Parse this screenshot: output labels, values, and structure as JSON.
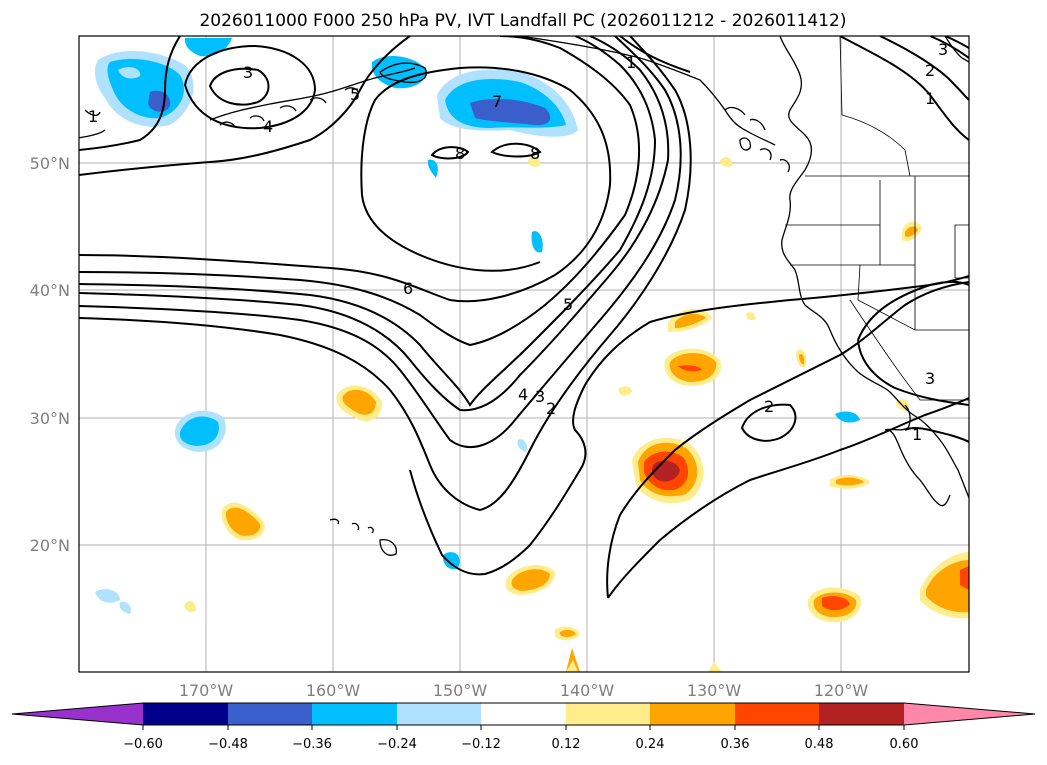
{
  "title": "2026011000 F000 250 hPa PV, IVT Landfall PC (2026011212 - 2026011412)",
  "lat_labels": [
    "50°N",
    "40°N",
    "30°N",
    "20°N"
  ],
  "lon_labels": [
    "170°W",
    "160°W",
    "150°W",
    "140°W",
    "130°W",
    "120°W"
  ],
  "colorbar": {
    "ticks": [
      "−0.60",
      "−0.48",
      "−0.36",
      "−0.24",
      "−0.12",
      "0.12",
      "0.24",
      "0.36",
      "0.48",
      "0.60"
    ],
    "colors": [
      "#9932cc",
      "#00008b",
      "#3a5fcd",
      "#00bfff",
      "#b0e2ff",
      "#ffffff",
      "#ffec8b",
      "#ffa500",
      "#ff4500",
      "#b22222",
      "#ff88aa"
    ]
  },
  "contour_labels": [
    "3",
    "4",
    "5",
    "7",
    "8",
    "8",
    "6",
    "5",
    "4",
    "3",
    "2",
    "2",
    "3",
    "1",
    "1",
    "2",
    "3",
    "1",
    "1"
  ],
  "chart_data": {
    "type": "map",
    "fields": [
      "250 hPa PV (contours)",
      "IVT Landfall PC (shaded)"
    ],
    "init": "2026011000",
    "forecast_hour": "F000",
    "valid_window": "2026011212 - 2026011412",
    "lat_range": [
      10,
      60
    ],
    "lon_range": [
      -180,
      -110
    ],
    "contour_levels": [
      1,
      2,
      3,
      4,
      5,
      6,
      7,
      8
    ],
    "shading_levels": [
      -0.6,
      -0.48,
      -0.36,
      -0.24,
      -0.12,
      0.12,
      0.24,
      0.36,
      0.48,
      0.6
    ]
  }
}
